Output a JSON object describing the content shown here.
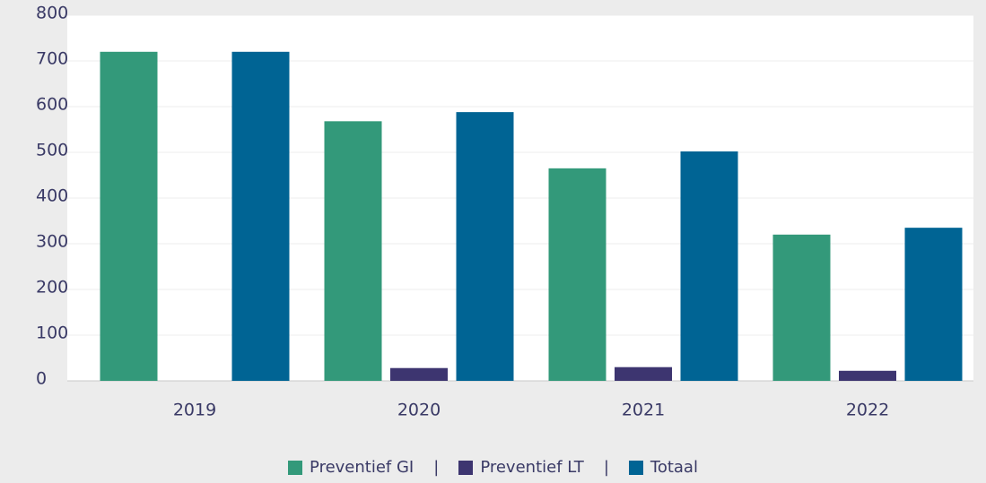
{
  "chart_data": {
    "type": "bar",
    "categories": [
      "2019",
      "2020",
      "2021",
      "2022"
    ],
    "series": [
      {
        "name": "Preventief GI",
        "color": "#33997a",
        "values": [
          720,
          568,
          465,
          320
        ]
      },
      {
        "name": "Preventief LT",
        "color": "#3d3570",
        "values": [
          0,
          28,
          30,
          22
        ]
      },
      {
        "name": "Totaal",
        "color": "#006494",
        "values": [
          720,
          588,
          502,
          335
        ]
      }
    ],
    "ylim": [
      0,
      800
    ],
    "yticks": [
      0,
      100,
      200,
      300,
      400,
      500,
      600,
      700,
      800
    ],
    "grid": true,
    "legend": "bottom",
    "legend_separator": "|"
  }
}
